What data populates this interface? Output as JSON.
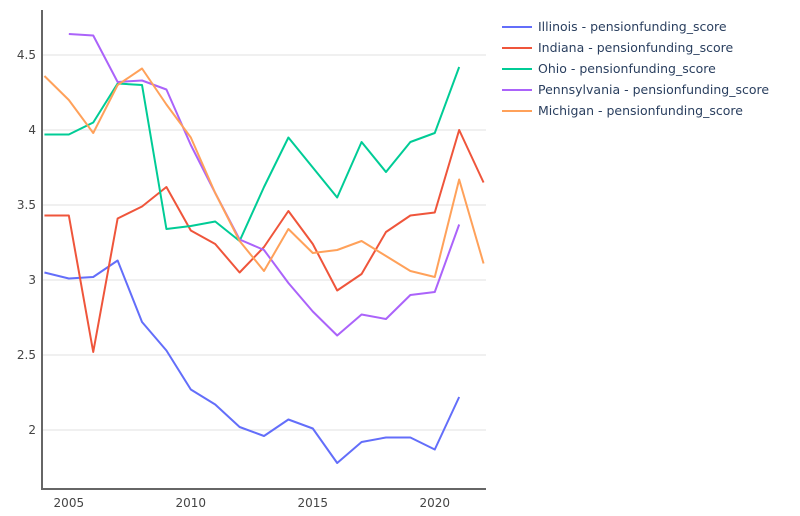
{
  "chart_data": {
    "type": "line",
    "title": "",
    "xlabel": "",
    "ylabel": "",
    "xlim": [
      2003.9,
      2022.1
    ],
    "ylim": [
      1.6,
      4.8
    ],
    "grid": true,
    "legend_position": "right",
    "x_ticks": [
      2005,
      2010,
      2015,
      2020
    ],
    "y_ticks": [
      2,
      2.5,
      3,
      3.5,
      4,
      4.5
    ],
    "y_tick_labels": [
      "2",
      "2.5",
      "3",
      "3.5",
      "4",
      "4.5"
    ],
    "x_tick_labels": [
      "2005",
      "2010",
      "2015",
      "2020"
    ],
    "series": [
      {
        "name": "Illinois - pensionfunding_score",
        "color": "#636efa",
        "x_start": 2004,
        "values": [
          3.05,
          3.01,
          3.02,
          3.13,
          2.72,
          2.53,
          2.27,
          2.17,
          2.02,
          1.96,
          2.07,
          2.01,
          1.78,
          1.92,
          1.95,
          1.95,
          1.87,
          2.22
        ]
      },
      {
        "name": "Indiana - pensionfunding_score",
        "color": "#EF553B",
        "x_start": 2004,
        "values": [
          3.43,
          3.43,
          2.52,
          3.41,
          3.49,
          3.62,
          3.33,
          3.24,
          3.05,
          3.22,
          3.46,
          3.24,
          2.93,
          3.04,
          3.32,
          3.43,
          3.45,
          4.0,
          3.65
        ]
      },
      {
        "name": "Ohio - pensionfunding_score",
        "color": "#00cc96",
        "x_start": 2004,
        "values": [
          3.97,
          3.97,
          4.05,
          4.31,
          4.3,
          3.34,
          3.36,
          3.39,
          3.26,
          3.62,
          3.95,
          3.75,
          3.55,
          3.92,
          3.72,
          3.92,
          3.98,
          4.42
        ]
      },
      {
        "name": "Pennsylvania - pensionfunding_score",
        "color": "#ab63fa",
        "x_start": 2005,
        "values": [
          4.64,
          4.63,
          4.32,
          4.33,
          4.27,
          3.9,
          3.58,
          3.27,
          3.2,
          2.98,
          2.79,
          2.63,
          2.77,
          2.74,
          2.9,
          2.92,
          3.37
        ]
      },
      {
        "name": "Michigan - pensionfunding_score",
        "color": "#FFA15A",
        "x_start": 2004,
        "values": [
          4.36,
          4.2,
          3.98,
          4.3,
          4.41,
          4.17,
          3.95,
          3.58,
          3.26,
          3.06,
          3.34,
          3.18,
          3.2,
          3.26,
          3.16,
          3.06,
          3.02,
          3.67,
          3.11
        ]
      }
    ]
  }
}
